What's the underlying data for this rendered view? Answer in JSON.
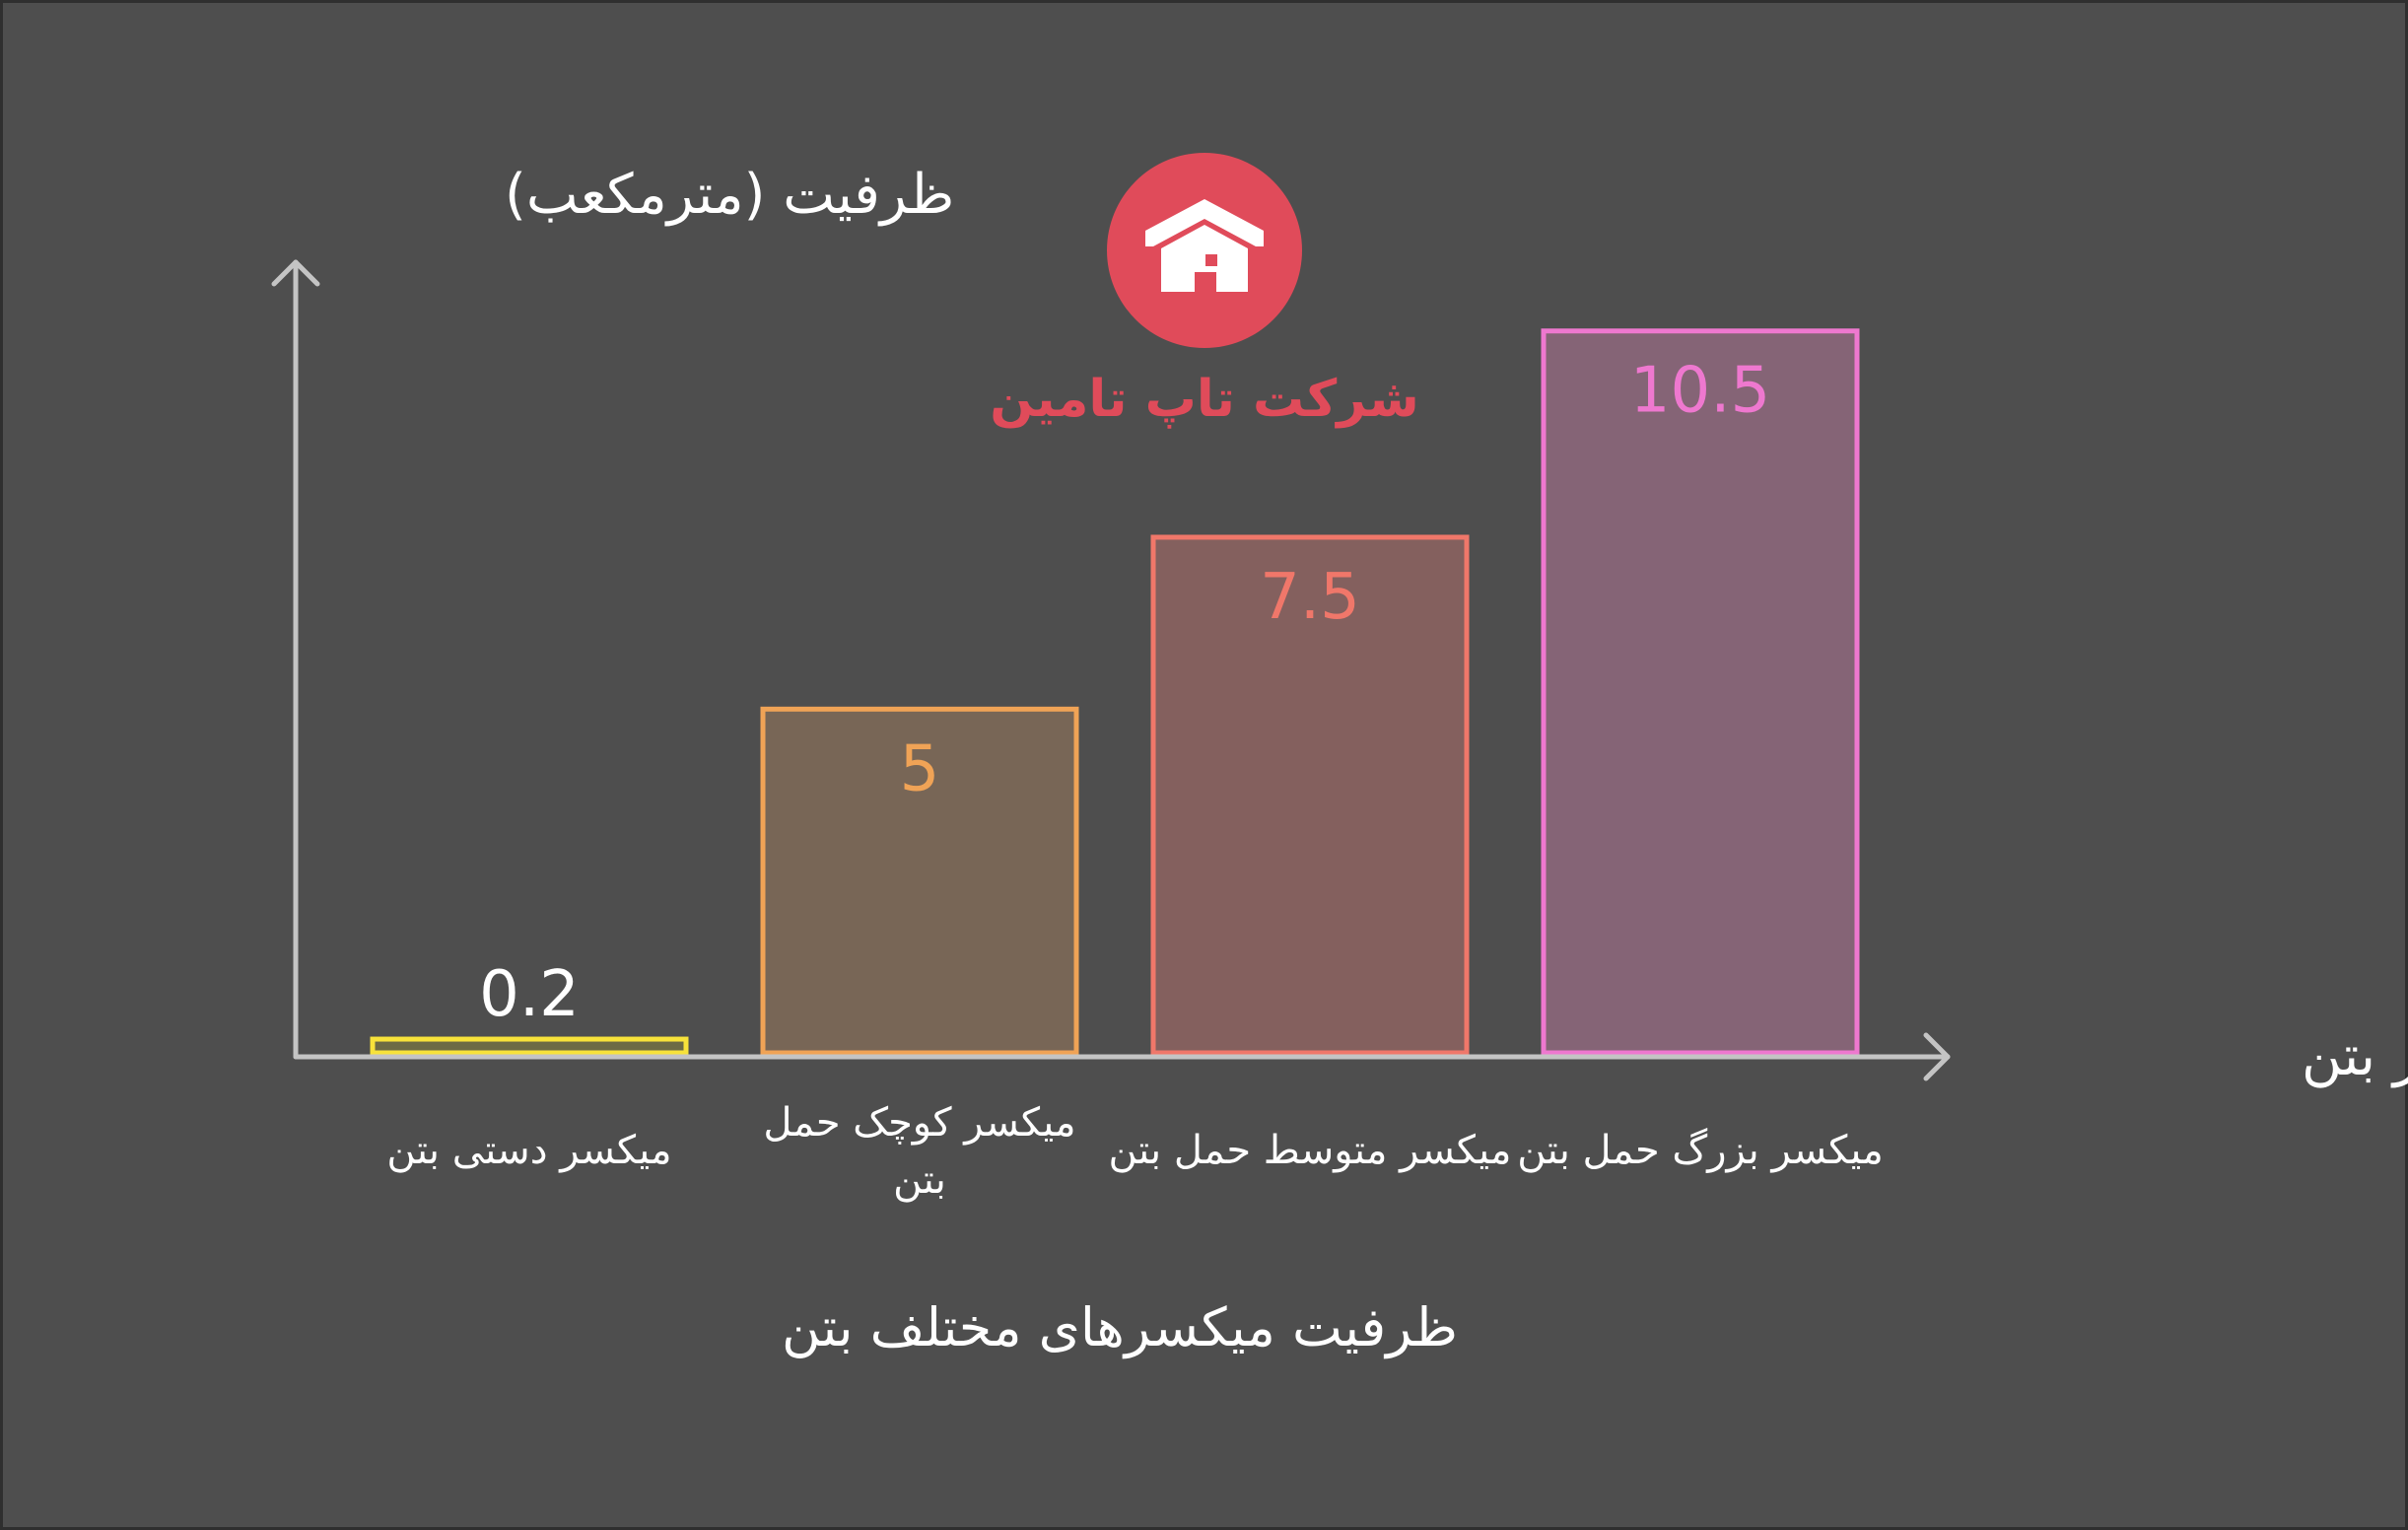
{
  "brand": {
    "name": "شرکت تاپ تامین",
    "color": "#e04b5a",
    "icon": "house-icon"
  },
  "caption": "ظرفیت میکسرهای مختلف بتن",
  "chart_data": {
    "type": "bar",
    "title": "",
    "ylabel": "ظرفیت (مترمکعب)",
    "xlabel": "نوع میکسر بتن",
    "ylim": [
      0,
      11.5
    ],
    "grid": false,
    "categories": [
      {
        "line1": "میکسر دستی بتن",
        "line2": ""
      },
      {
        "line1": "میکسر کوچک حمل",
        "line2": "بتن"
      },
      {
        "line1": "میکسر متوسط حمل بتن",
        "line2": ""
      },
      {
        "line1": "میکسر بزرگ حمل بتن",
        "line2": ""
      }
    ],
    "values": [
      0.2,
      5,
      7.5,
      10.5
    ],
    "value_labels": [
      "0.2",
      "5",
      "7.5",
      "10.5"
    ],
    "colors": [
      {
        "stroke": "#f7e23a",
        "fill": "#6c6a45",
        "label": "#ffffff"
      },
      {
        "stroke": "#f0a356",
        "fill": "#786656",
        "label": "#f0a356"
      },
      {
        "stroke": "#f0776a",
        "fill": "#84605e",
        "label": "#f0776a"
      },
      {
        "stroke": "#ee78cf",
        "fill": "#856476",
        "label": "#ee78cf"
      }
    ]
  }
}
